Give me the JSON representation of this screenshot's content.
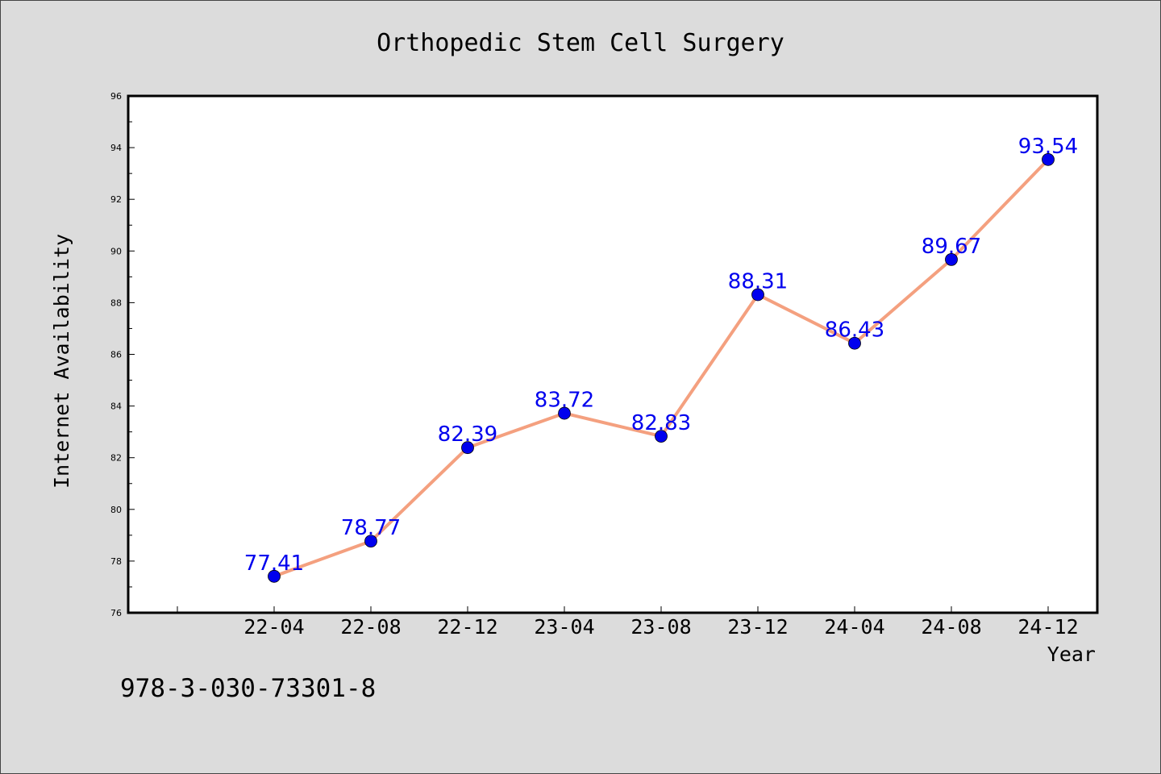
{
  "chart_data": {
    "type": "line",
    "title": "Orthopedic Stem Cell Surgery",
    "xlabel": "Year",
    "ylabel": "Internet Availability",
    "categories": [
      "22-04",
      "22-08",
      "22-12",
      "23-04",
      "23-08",
      "23-12",
      "24-04",
      "24-08",
      "24-12"
    ],
    "series": [
      {
        "values": [
          77.41,
          78.77,
          82.39,
          83.72,
          82.83,
          88.31,
          86.43,
          89.67,
          93.54
        ]
      }
    ],
    "data_labels": [
      "77.41",
      "78.77",
      "82.39",
      "83.72",
      "82.83",
      "88.31",
      "86.43",
      "89.67",
      "93.54"
    ],
    "ylim": [
      76,
      96
    ],
    "yticks": [
      76,
      78,
      80,
      82,
      84,
      86,
      88,
      90,
      92,
      94,
      96
    ],
    "grid": false,
    "legend": "none",
    "colors": {
      "line": "#f4a07f",
      "marker": "#0000ee",
      "data_label": "#0000ee",
      "plot_background": "#ffffff",
      "page_background": "#dcdcdc"
    }
  },
  "footer": {
    "isbn": "978-3-030-73301-8"
  }
}
